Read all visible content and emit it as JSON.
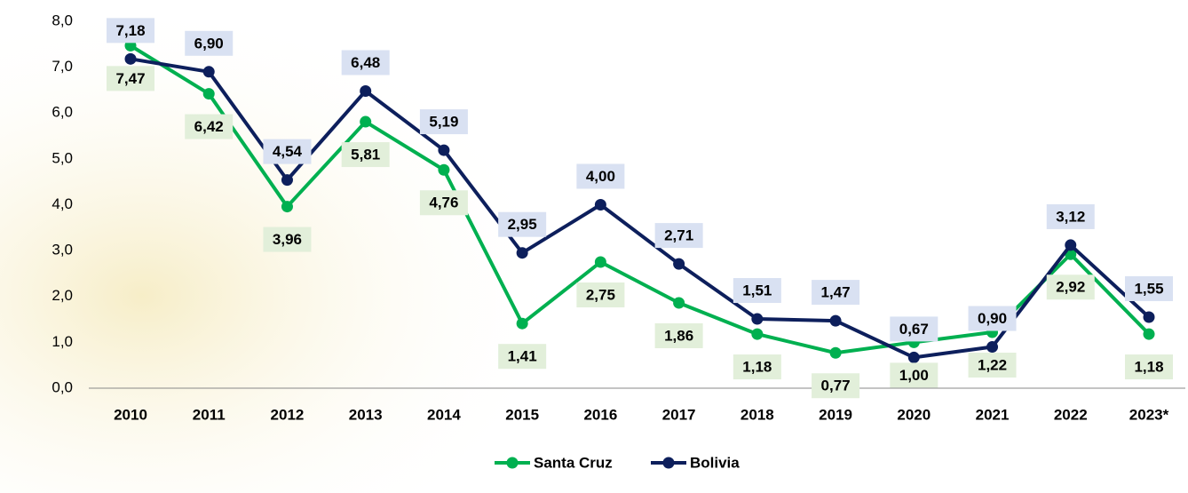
{
  "chart_data": {
    "type": "line",
    "categories": [
      "2010",
      "2011",
      "2012",
      "2013",
      "2014",
      "2015",
      "2016",
      "2017",
      "2018",
      "2019",
      "2020",
      "2021",
      "2022",
      "2023*"
    ],
    "series": [
      {
        "name": "Santa Cruz",
        "color": "#00b050",
        "label_bg": "#e2efda",
        "values": [
          7.47,
          6.42,
          3.96,
          5.81,
          4.76,
          1.41,
          2.75,
          1.86,
          1.18,
          0.77,
          1.0,
          1.22,
          2.92,
          1.18
        ],
        "value_labels": [
          "7,47",
          "6,42",
          "3,96",
          "5,81",
          "4,76",
          "1,41",
          "2,75",
          "1,86",
          "1,18",
          "0,77",
          "1,00",
          "1,22",
          "2,92",
          "1,18"
        ]
      },
      {
        "name": "Bolivia",
        "color": "#0d1f5c",
        "label_bg": "#d9e1f2",
        "values": [
          7.18,
          6.9,
          4.54,
          6.48,
          5.19,
          2.95,
          4.0,
          2.71,
          1.51,
          1.47,
          0.67,
          0.9,
          3.12,
          1.55
        ],
        "value_labels": [
          "7,18",
          "6,90",
          "4,54",
          "6,48",
          "5,19",
          "2,95",
          "4,00",
          "2,71",
          "1,51",
          "1,47",
          "0,67",
          "0,90",
          "3,12",
          "1,55"
        ]
      }
    ],
    "ylim": [
      0,
      8
    ],
    "yticks": [
      {
        "value": 0,
        "label": "0,0"
      },
      {
        "value": 1,
        "label": "1,0"
      },
      {
        "value": 2,
        "label": "2,0"
      },
      {
        "value": 3,
        "label": "3,0"
      },
      {
        "value": 4,
        "label": "4,0"
      },
      {
        "value": 5,
        "label": "5,0"
      },
      {
        "value": 6,
        "label": "6,0"
      },
      {
        "value": 7,
        "label": "7,0"
      },
      {
        "value": 8,
        "label": "8,0"
      }
    ],
    "legend": "bottom"
  }
}
